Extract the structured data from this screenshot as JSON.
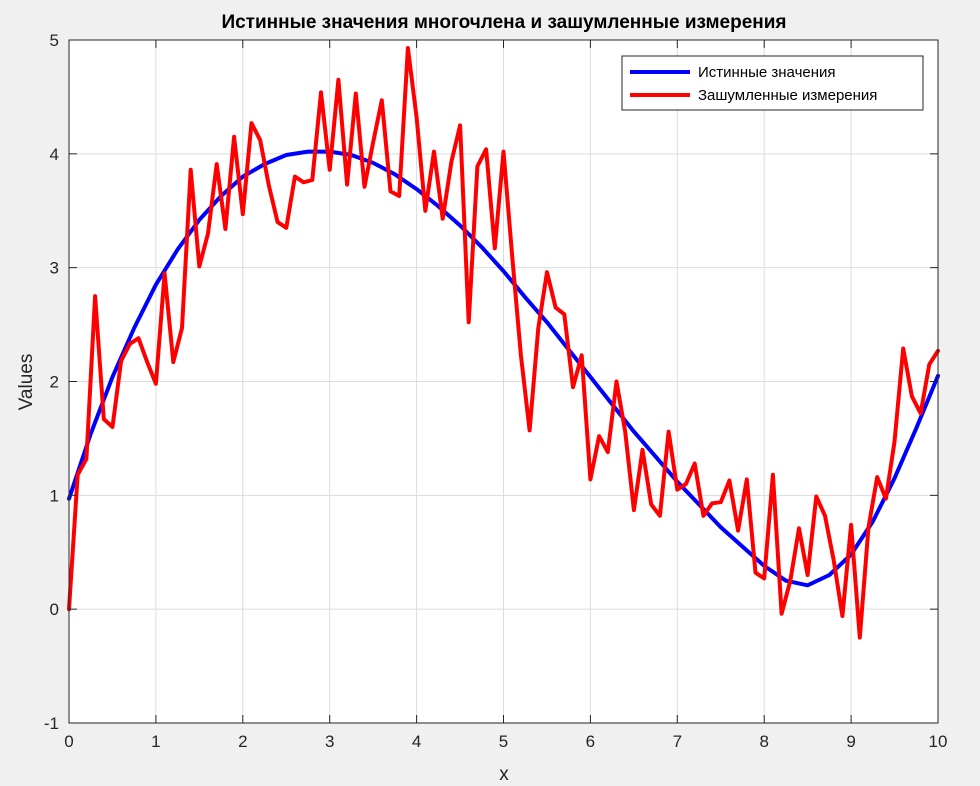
{
  "chart_data": {
    "type": "line",
    "title": "Истинные значения многочлена и зашумленные измерения",
    "xlabel": "x",
    "ylabel": "Values",
    "xlim": [
      0,
      10
    ],
    "ylim": [
      -1,
      5
    ],
    "xticks": [
      "0",
      "1",
      "2",
      "3",
      "4",
      "5",
      "6",
      "7",
      "8",
      "9",
      "10"
    ],
    "yticks": [
      "-1",
      "0",
      "1",
      "2",
      "3",
      "4",
      "5"
    ],
    "grid": true,
    "legend_position": "top-right",
    "series": [
      {
        "name": "Истинные значения",
        "color": "#0000ff",
        "x": [
          0,
          0.25,
          0.5,
          0.75,
          1,
          1.25,
          1.5,
          1.75,
          2,
          2.25,
          2.5,
          2.75,
          3,
          3.25,
          3.5,
          3.75,
          4,
          4.25,
          4.5,
          4.75,
          5,
          5.25,
          5.5,
          5.75,
          6,
          6.25,
          6.5,
          6.75,
          7,
          7.25,
          7.5,
          7.75,
          8,
          8.25,
          8.5,
          8.75,
          9,
          9.25,
          9.5,
          9.75,
          10
        ],
        "y": [
          0.97,
          1.54,
          2.04,
          2.47,
          2.85,
          3.16,
          3.42,
          3.63,
          3.8,
          3.91,
          3.99,
          4.02,
          4.02,
          3.99,
          3.92,
          3.82,
          3.69,
          3.54,
          3.37,
          3.18,
          2.97,
          2.74,
          2.52,
          2.28,
          2.04,
          1.8,
          1.56,
          1.34,
          1.12,
          0.92,
          0.72,
          0.55,
          0.38,
          0.25,
          0.21,
          0.3,
          0.48,
          0.77,
          1.15,
          1.59,
          2.05
        ]
      },
      {
        "name": "Зашумленные измерения",
        "color": "#ff0000",
        "x": [
          0,
          0.1,
          0.2,
          0.3,
          0.4,
          0.5,
          0.6,
          0.7,
          0.8,
          0.9,
          1,
          1.1,
          1.2,
          1.3,
          1.4,
          1.5,
          1.6,
          1.7,
          1.8,
          1.9,
          2,
          2.1,
          2.2,
          2.3,
          2.4,
          2.5,
          2.6,
          2.7,
          2.8,
          2.9,
          3,
          3.1,
          3.2,
          3.3,
          3.4,
          3.5,
          3.6,
          3.7,
          3.8,
          3.9,
          4,
          4.1,
          4.2,
          4.3,
          4.4,
          4.5,
          4.6,
          4.7,
          4.8,
          4.9,
          5,
          5.1,
          5.2,
          5.3,
          5.4,
          5.5,
          5.6,
          5.7,
          5.8,
          5.9,
          6,
          6.1,
          6.2,
          6.3,
          6.4,
          6.5,
          6.6,
          6.7,
          6.8,
          6.9,
          7,
          7.1,
          7.2,
          7.3,
          7.4,
          7.5,
          7.6,
          7.7,
          7.8,
          7.9,
          8,
          8.1,
          8.2,
          8.3,
          8.4,
          8.5,
          8.6,
          8.7,
          8.8,
          8.9,
          9,
          9.1,
          9.2,
          9.3,
          9.4,
          9.5,
          9.6,
          9.7,
          9.8,
          9.9,
          10
        ],
        "y": [
          0,
          1.18,
          1.32,
          2.75,
          1.67,
          1.6,
          2.18,
          2.33,
          2.38,
          2.17,
          1.98,
          2.95,
          2.17,
          2.47,
          3.86,
          3.01,
          3.3,
          3.91,
          3.34,
          4.15,
          3.47,
          4.27,
          4.12,
          3.72,
          3.4,
          3.35,
          3.8,
          3.75,
          3.77,
          4.54,
          3.86,
          4.65,
          3.73,
          4.53,
          3.71,
          4.1,
          4.47,
          3.67,
          3.63,
          4.93,
          4.32,
          3.5,
          4.02,
          3.43,
          3.93,
          4.25,
          2.52,
          3.89,
          4.04,
          3.17,
          4.02,
          3.1,
          2.23,
          1.57,
          2.47,
          2.96,
          2.65,
          2.59,
          1.95,
          2.23,
          1.14,
          1.52,
          1.38,
          2,
          1.56,
          0.87,
          1.4,
          0.92,
          0.82,
          1.56,
          1.05,
          1.1,
          1.28,
          0.82,
          0.93,
          0.94,
          1.13,
          0.69,
          1.14,
          0.32,
          0.27,
          1.18,
          -0.04,
          0.25,
          0.71,
          0.3,
          0.99,
          0.82,
          0.43,
          -0.06,
          0.74,
          -0.25,
          0.72,
          1.16,
          0.97,
          1.47,
          2.29,
          1.87,
          1.72,
          2.15,
          2.27
        ]
      }
    ]
  }
}
